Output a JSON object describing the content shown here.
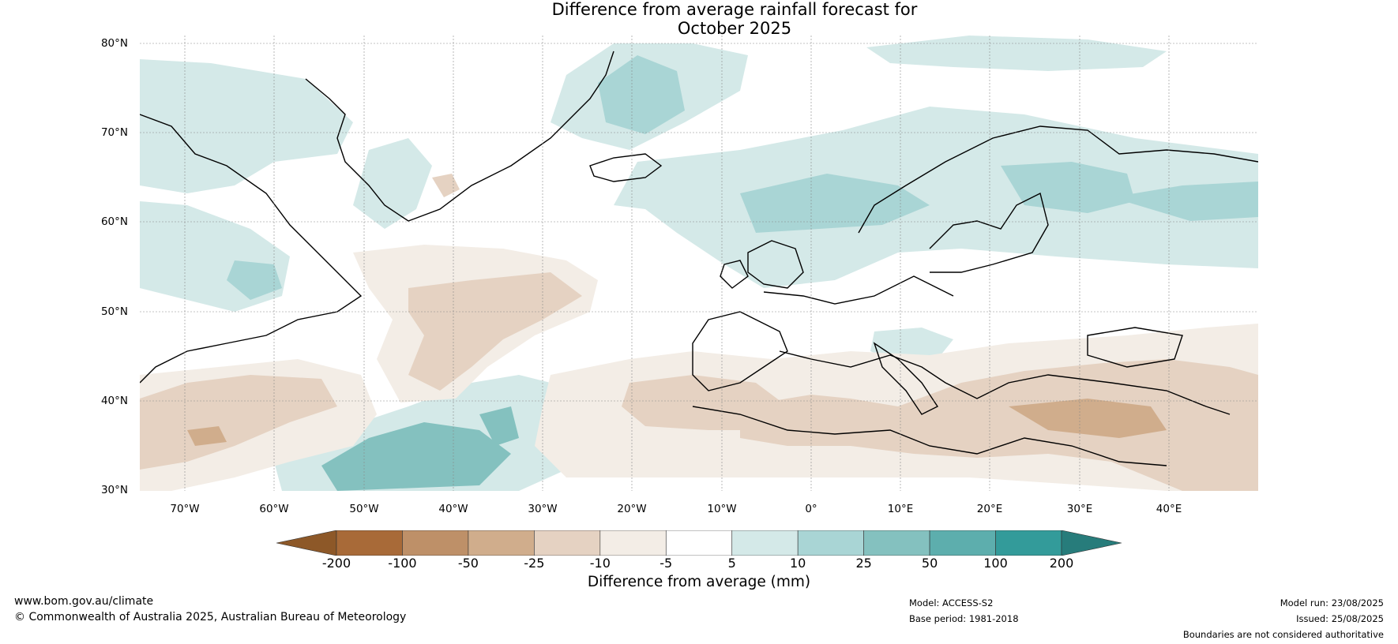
{
  "title_line1": "Difference from average rainfall forecast for",
  "title_line2": "October 2025",
  "lat_labels": [
    "80°N",
    "70°N",
    "60°N",
    "50°N",
    "40°N",
    "30°N"
  ],
  "lon_labels": [
    "70°W",
    "60°W",
    "50°W",
    "40°W",
    "30°W",
    "20°W",
    "10°W",
    "0°",
    "10°E",
    "20°E",
    "30°E",
    "40°E"
  ],
  "colorbar": {
    "ticks": [
      "-200",
      "-100",
      "-50",
      "-25",
      "-10",
      "-5",
      "5",
      "10",
      "25",
      "50",
      "100",
      "200"
    ],
    "colors": [
      "#a86a38",
      "#be9068",
      "#d0ad8c",
      "#e5d2c2",
      "#f3ede6",
      "#ffffff",
      "#d4e9e8",
      "#a9d5d5",
      "#84c1bf",
      "#5daead",
      "#339b9a"
    ],
    "under_color": "#8d5828",
    "over_color": "#277c7b",
    "label": "Difference from average (mm)"
  },
  "footer": {
    "website": "www.bom.gov.au/climate",
    "copyright": "© Commonwealth of Australia 2025, Australian Bureau of Meteorology",
    "model": "Model: ACCESS-S2",
    "base_period": "Base period: 1981-2018",
    "model_run": "Model run: 23/08/2025",
    "issued": "Issued: 25/08/2025",
    "disclaimer": "Boundaries are not considered authoritative"
  }
}
